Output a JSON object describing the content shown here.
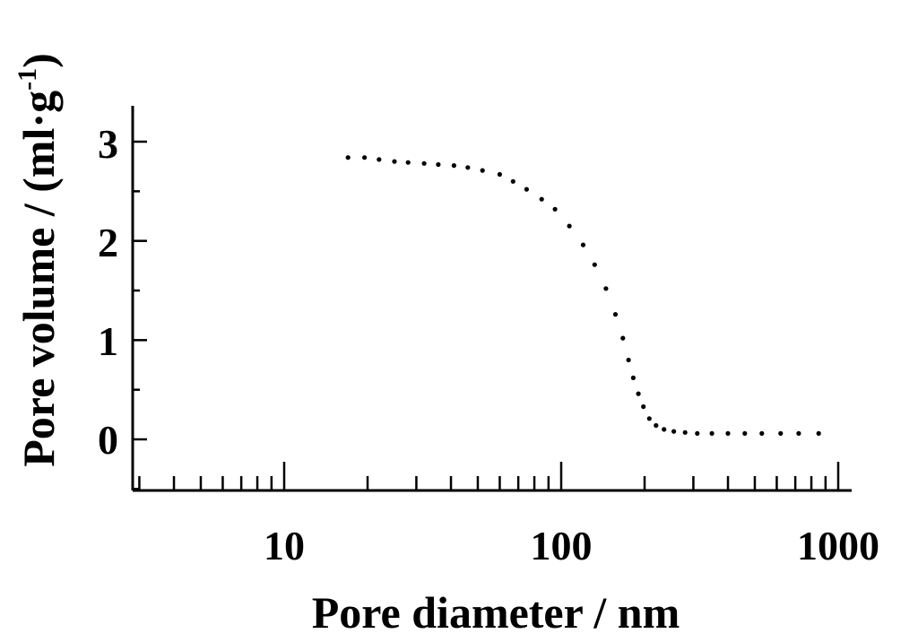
{
  "chart_data": {
    "type": "scatter",
    "xlabel": "Pore diameter / nm",
    "ylabel_main": "Pore volume / (ml·g",
    "ylabel_sup": "-1",
    "ylabel_close": ")",
    "x_scale": "log",
    "xlim": [
      2.6,
      1000
    ],
    "ylim": [
      -0.5,
      3.4
    ],
    "x_tick_labels": [
      "10",
      "100",
      "1000"
    ],
    "y_tick_labels": [
      "0",
      "1",
      "2",
      "3"
    ],
    "grid": false,
    "series": [
      {
        "x": [
          17,
          19.5,
          22,
          25,
          28,
          32,
          36,
          41,
          46,
          52,
          60,
          67,
          75,
          85,
          95,
          107,
          120,
          132,
          145,
          157,
          167,
          175,
          182,
          190,
          198,
          208,
          220,
          235,
          255,
          280,
          310,
          350,
          400,
          460,
          530,
          620,
          720,
          850
        ],
        "y": [
          2.84,
          2.84,
          2.82,
          2.8,
          2.79,
          2.78,
          2.77,
          2.76,
          2.74,
          2.71,
          2.67,
          2.6,
          2.52,
          2.42,
          2.32,
          2.15,
          1.96,
          1.76,
          1.52,
          1.26,
          1.02,
          0.8,
          0.62,
          0.46,
          0.33,
          0.21,
          0.14,
          0.1,
          0.08,
          0.07,
          0.06,
          0.06,
          0.06,
          0.06,
          0.06,
          0.06,
          0.06,
          0.06
        ]
      }
    ]
  }
}
